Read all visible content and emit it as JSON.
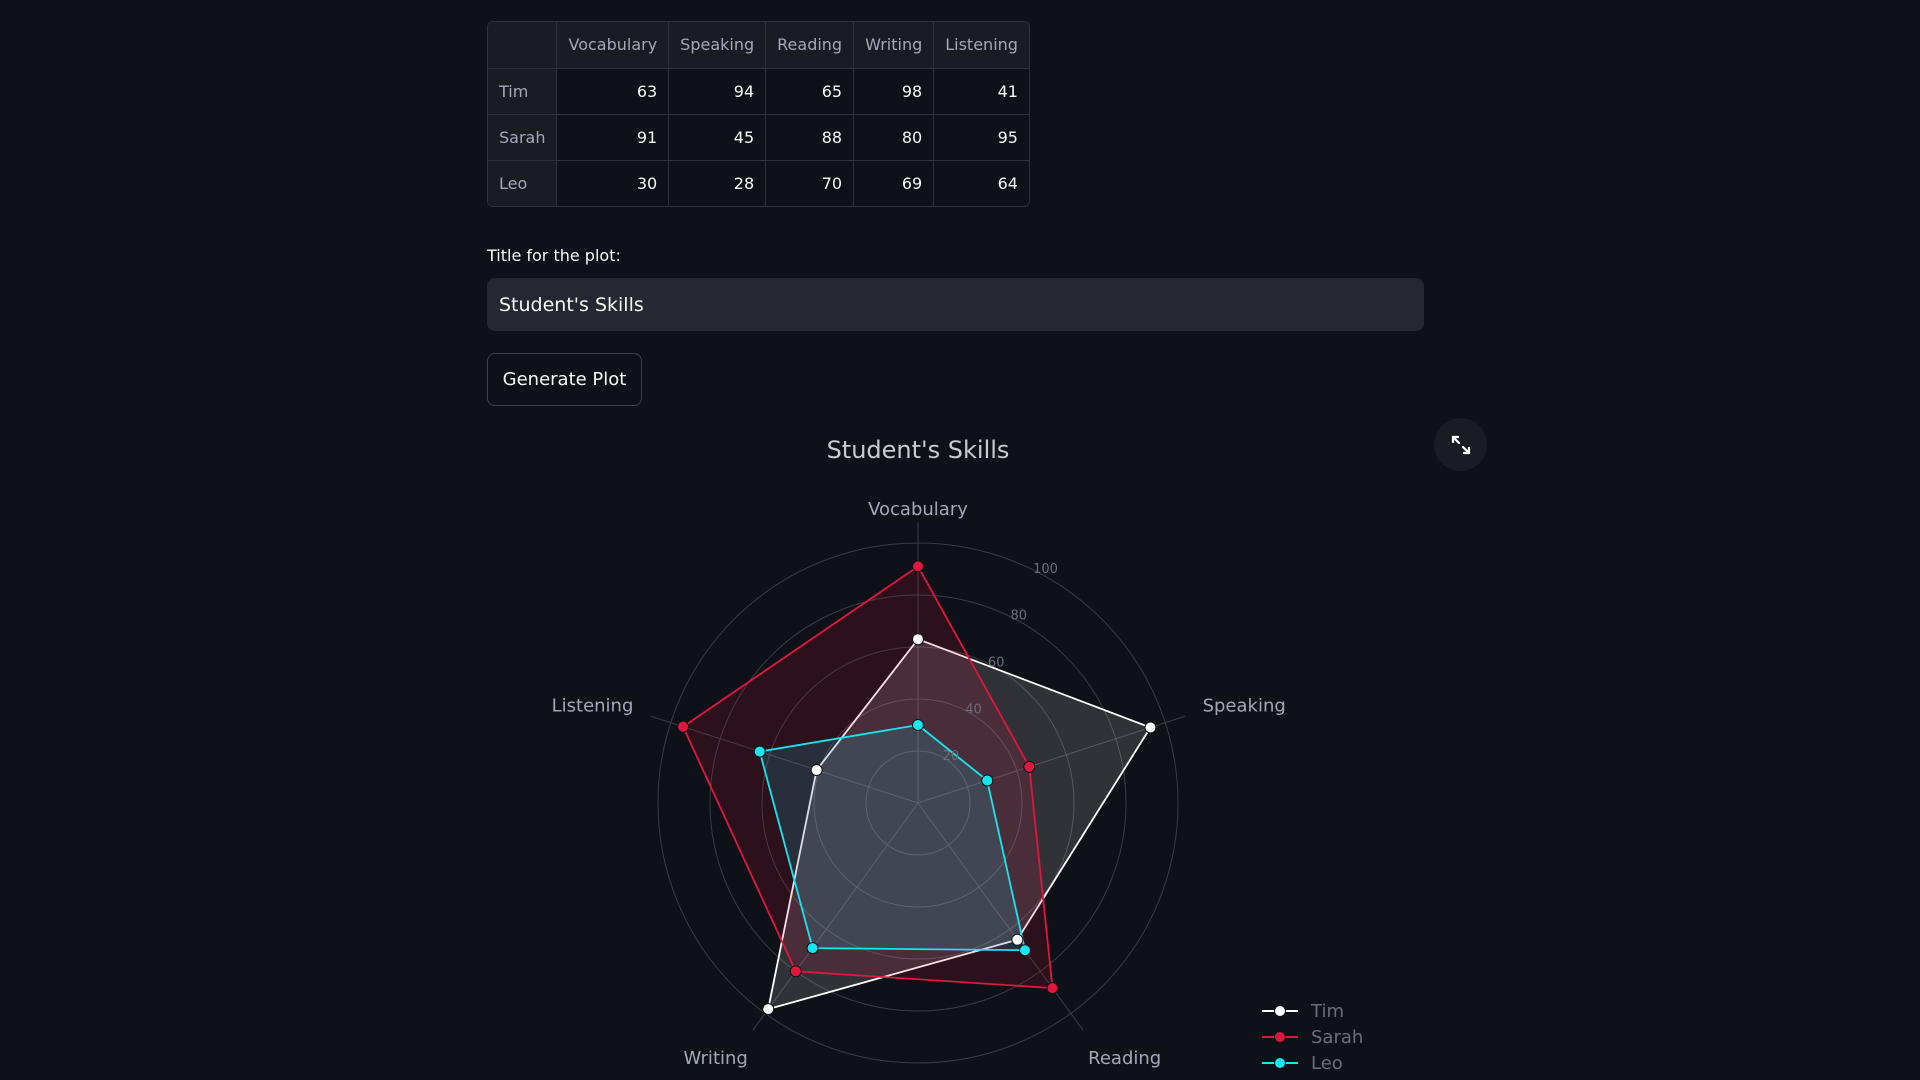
{
  "table": {
    "columns": [
      "",
      "Vocabulary",
      "Speaking",
      "Reading",
      "Writing",
      "Listening"
    ],
    "rows": [
      {
        "name": "Tim",
        "values": [
          "63",
          "94",
          "65",
          "98",
          "41"
        ]
      },
      {
        "name": "Sarah",
        "values": [
          "91",
          "45",
          "88",
          "80",
          "95"
        ]
      },
      {
        "name": "Leo",
        "values": [
          "30",
          "28",
          "70",
          "69",
          "64"
        ]
      }
    ]
  },
  "form": {
    "title_label": "Title for the plot:",
    "title_value": "Student's Skills",
    "generate_label": "Generate Plot"
  },
  "toolbar": {
    "fullscreen_icon": "expand-icon"
  },
  "colors": {
    "background": "#0e1117",
    "Tim": "#ffffff",
    "Sarah": "#e0163f",
    "Leo": "#17e6f0"
  },
  "chart_data": {
    "type": "radar",
    "title": "Student's Skills",
    "categories": [
      "Vocabulary",
      "Speaking",
      "Reading",
      "Writing",
      "Listening"
    ],
    "radial_ticks": [
      20,
      40,
      60,
      80,
      100
    ],
    "range": [
      0,
      100
    ],
    "series": [
      {
        "name": "Tim",
        "values": [
          63,
          94,
          65,
          98,
          41
        ]
      },
      {
        "name": "Sarah",
        "values": [
          91,
          45,
          88,
          80,
          95
        ]
      },
      {
        "name": "Leo",
        "values": [
          30,
          28,
          70,
          69,
          64
        ]
      }
    ],
    "legend_position": "bottom-right",
    "grid": true
  }
}
